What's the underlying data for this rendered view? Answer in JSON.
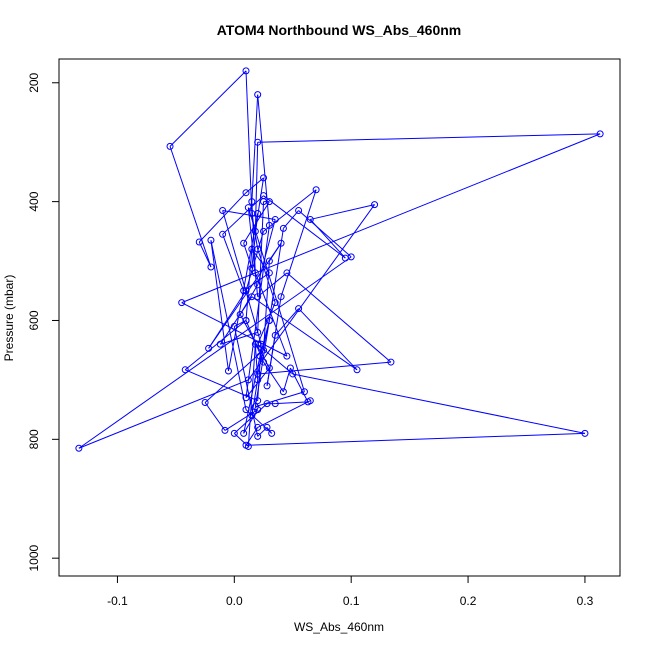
{
  "chart_data": {
    "type": "line",
    "title": "ATOM4 Northbound WS_Abs_460nm",
    "xlabel": "WS_Abs_460nm",
    "ylabel": "Pressure (mbar)",
    "xlim": [
      -0.15,
      0.33
    ],
    "ylim": [
      1030,
      160
    ],
    "y_reversed": true,
    "grid": false,
    "legend": "none",
    "x_ticks": [
      -0.1,
      0.0,
      0.1,
      0.2,
      0.3
    ],
    "x_tick_labels": [
      "-0.1",
      "0.0",
      "0.1",
      "0.2",
      "0.3"
    ],
    "y_ticks": [
      200,
      400,
      600,
      800,
      1000
    ],
    "y_tick_labels": [
      "200",
      "400",
      "600",
      "800",
      "1000"
    ],
    "series": [
      {
        "color": "#0000ff",
        "marker": "open-circle",
        "points": [
          [
            0.065,
            735
          ],
          [
            0.02,
            780
          ],
          [
            0.01,
            810
          ],
          [
            0.3,
            790
          ],
          [
            0.05,
            690
          ],
          [
            0.02,
            640
          ],
          [
            0.035,
            570
          ],
          [
            0.02,
            480
          ],
          [
            0.015,
            420
          ],
          [
            0.01,
            180
          ],
          [
            -0.055,
            307
          ],
          [
            -0.02,
            510
          ],
          [
            -0.03,
            468
          ],
          [
            0.01,
            385
          ],
          [
            0.025,
            360
          ],
          [
            0.018,
            450
          ],
          [
            0.02,
            300
          ],
          [
            0.313,
            286
          ],
          [
            -0.045,
            570
          ],
          [
            0.045,
            660
          ],
          [
            0.018,
            520
          ],
          [
            0.015,
            400
          ],
          [
            0.02,
            220
          ],
          [
            0.03,
            440
          ],
          [
            0.01,
            730
          ],
          [
            0.03,
            680
          ],
          [
            0.005,
            590
          ],
          [
            0.02,
            540
          ],
          [
            0.035,
            430
          ],
          [
            -0.01,
            415
          ],
          [
            0.023,
            640
          ],
          [
            0.02,
            735
          ],
          [
            -0.042,
            683
          ],
          [
            0.01,
            600
          ],
          [
            0.015,
            480
          ],
          [
            0.03,
            520
          ],
          [
            0.008,
            550
          ],
          [
            -0.01,
            455
          ],
          [
            0.025,
            390
          ],
          [
            0.095,
            495
          ],
          [
            0.065,
            430
          ],
          [
            0.12,
            405
          ],
          [
            0.012,
            700
          ],
          [
            -0.133,
            815
          ],
          [
            0.1,
            493
          ],
          [
            0.055,
            415
          ],
          [
            0.042,
            445
          ],
          [
            0.03,
            600
          ],
          [
            0.02,
            690
          ],
          [
            0.134,
            670
          ],
          [
            0.045,
            520
          ],
          [
            0.02,
            560
          ],
          [
            0.012,
            410
          ],
          [
            0.06,
            720
          ],
          [
            0.018,
            745
          ],
          [
            0.03,
            600
          ],
          [
            0.022,
            660
          ],
          [
            0.008,
            790
          ],
          [
            0.02,
            750
          ],
          [
            -0.008,
            785
          ],
          [
            -0.025,
            738
          ],
          [
            0.025,
            650
          ],
          [
            0.03,
            500
          ],
          [
            0.04,
            470
          ],
          [
            -0.022,
            647
          ],
          [
            0.01,
            550
          ],
          [
            0.025,
            450
          ],
          [
            0.07,
            380
          ],
          [
            0.04,
            560
          ],
          [
            0.028,
            710
          ],
          [
            0.035,
            625
          ],
          [
            0.055,
            580
          ],
          [
            0.105,
            683
          ],
          [
            0.015,
            560
          ],
          [
            -0.012,
            640
          ],
          [
            0.02,
            620
          ],
          [
            0.025,
            400
          ],
          [
            0.03,
            400
          ],
          [
            0.008,
            470
          ],
          [
            0.015,
            512
          ],
          [
            0.02,
            420
          ],
          [
            -0.005,
            685
          ],
          [
            -0.02,
            465
          ],
          [
            0.01,
            750
          ],
          [
            0.032,
            790
          ],
          [
            0.028,
            780
          ],
          [
            0.02,
            795
          ],
          [
            0.0,
            610
          ],
          [
            0.01,
            600
          ],
          [
            0.025,
            670
          ],
          [
            0.042,
            720
          ],
          [
            0.048,
            680
          ],
          [
            0.063,
            737
          ],
          [
            0.035,
            740
          ],
          [
            0.028,
            740
          ],
          [
            0.0,
            790
          ],
          [
            0.012,
            812
          ],
          [
            0.018,
            640
          ],
          [
            0.02,
            700
          ],
          [
            0.015,
            760
          ]
        ]
      }
    ]
  }
}
